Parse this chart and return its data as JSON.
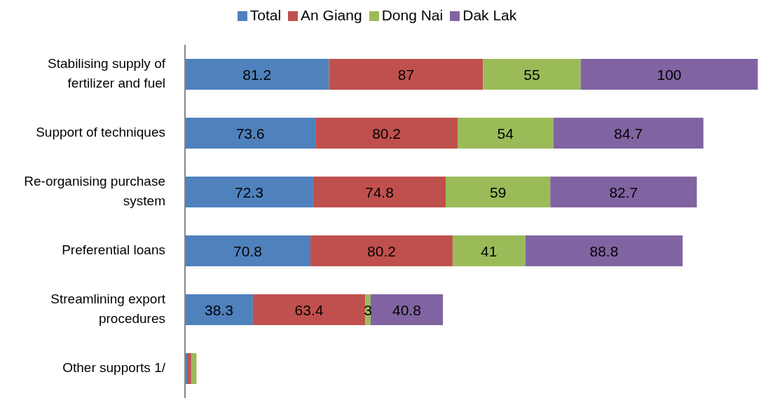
{
  "chart_data": {
    "type": "bar",
    "orientation": "horizontal",
    "stacked": true,
    "legend": "top",
    "grid": false,
    "xlim": [
      0,
      325
    ],
    "tick_labels": "y",
    "categories": [
      "Stabilising supply of fertilizer and fuel",
      "Support of techniques",
      "Re-organising purchase system",
      "Preferential loans",
      "Streamlining export procedures",
      "Other supports 1/"
    ],
    "series": [
      {
        "name": "Total",
        "color": "#4f81bd",
        "values": [
          81.2,
          73.6,
          72.3,
          70.8,
          38.3,
          1.2
        ],
        "value_labels": [
          "81.2",
          "73.6",
          "72.3",
          "70.8",
          "38.3",
          null
        ]
      },
      {
        "name": "An Giang",
        "color": "#c0504d",
        "values": [
          87,
          80.2,
          74.8,
          80.2,
          63.4,
          2.3
        ],
        "value_labels": [
          "87",
          "80.2",
          "74.8",
          "80.2",
          "63.4",
          null
        ]
      },
      {
        "name": "Dong Nai",
        "color": "#9bbb59",
        "values": [
          55,
          54,
          59,
          41,
          3,
          3
        ],
        "value_labels": [
          "55",
          "54",
          "59",
          "41",
          "3",
          null
        ]
      },
      {
        "name": "Dak Lak",
        "color": "#8064a2",
        "values": [
          100,
          84.7,
          82.7,
          88.8,
          40.8,
          0
        ],
        "value_labels": [
          "100",
          "84.7",
          "82.7",
          "88.8",
          "40.8",
          null
        ]
      }
    ]
  }
}
